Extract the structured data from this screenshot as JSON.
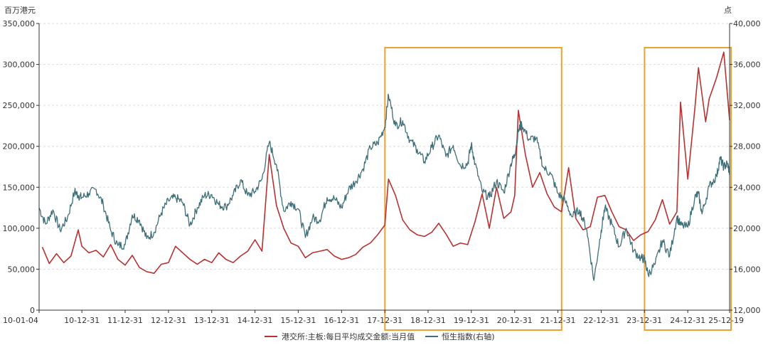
{
  "chart_data": {
    "type": "line",
    "left_unit": "百万港元",
    "right_unit": "点",
    "yleft": {
      "min": 0,
      "max": 350000,
      "ticks": [
        0,
        50000,
        100000,
        150000,
        200000,
        250000,
        300000,
        350000
      ],
      "tick_labels": [
        "0",
        "50,000",
        "100,000",
        "150,000",
        "200,000",
        "250,000",
        "300,000",
        "350,000"
      ]
    },
    "yright": {
      "min": 12000,
      "max": 40000,
      "ticks": [
        12000,
        16000,
        20000,
        24000,
        28000,
        32000,
        36000,
        40000
      ],
      "tick_labels": [
        "12,000",
        "16,000",
        "20,000",
        "24,000",
        "28,000",
        "32,000",
        "36,000",
        "40,000"
      ]
    },
    "x": {
      "min": "2010-01-04",
      "max": "2025-12-19",
      "ticks": [
        "2010-01-04",
        "2010-12-31",
        "2011-12-31",
        "2012-12-31",
        "2013-12-31",
        "2014-12-31",
        "2015-12-31",
        "2016-12-31",
        "2017-12-31",
        "2018-12-31",
        "2019-12-31",
        "2020-12-31",
        "2021-12-31",
        "2022-12-31",
        "2023-12-31",
        "2024-12-31",
        "2025-12-19"
      ],
      "tick_labels": [
        "10-01-04",
        "10-12-31",
        "11-12-31",
        "12-12-31",
        "13-12-31",
        "14-12-31",
        "15-12-31",
        "16-12-31",
        "17-12-31",
        "18-12-31",
        "19-12-31",
        "20-12-31",
        "21-12-31",
        "22-12-31",
        "23-12-31",
        "24-12-31",
        "25-12-19"
      ]
    },
    "grid": true,
    "legend_position": "bottom",
    "series": [
      {
        "name": "港交所:主板:每日平均成交金额:当月值",
        "axis": "left",
        "color": "#b83232",
        "points": [
          [
            "2010-01-31",
            77000
          ],
          [
            "2010-03-31",
            57000
          ],
          [
            "2010-05-31",
            69000
          ],
          [
            "2010-07-31",
            58000
          ],
          [
            "2010-09-30",
            66000
          ],
          [
            "2010-11-30",
            98000
          ],
          [
            "2010-12-31",
            78000
          ],
          [
            "2011-02-28",
            70000
          ],
          [
            "2011-04-30",
            73000
          ],
          [
            "2011-06-30",
            65000
          ],
          [
            "2011-08-31",
            80000
          ],
          [
            "2011-10-31",
            62000
          ],
          [
            "2011-12-31",
            55000
          ],
          [
            "2012-02-29",
            67000
          ],
          [
            "2012-04-30",
            52000
          ],
          [
            "2012-06-30",
            47000
          ],
          [
            "2012-08-31",
            45000
          ],
          [
            "2012-10-31",
            56000
          ],
          [
            "2012-12-31",
            58000
          ],
          [
            "2013-02-28",
            78000
          ],
          [
            "2013-04-30",
            70000
          ],
          [
            "2013-06-30",
            62000
          ],
          [
            "2013-08-31",
            56000
          ],
          [
            "2013-10-31",
            62000
          ],
          [
            "2013-12-31",
            58000
          ],
          [
            "2014-02-28",
            70000
          ],
          [
            "2014-04-30",
            62000
          ],
          [
            "2014-06-30",
            58000
          ],
          [
            "2014-08-31",
            66000
          ],
          [
            "2014-10-31",
            72000
          ],
          [
            "2014-12-31",
            86000
          ],
          [
            "2015-02-28",
            72000
          ],
          [
            "2015-04-30",
            190000
          ],
          [
            "2015-06-30",
            128000
          ],
          [
            "2015-08-31",
            100000
          ],
          [
            "2015-10-31",
            82000
          ],
          [
            "2015-12-31",
            78000
          ],
          [
            "2016-02-29",
            64000
          ],
          [
            "2016-04-30",
            70000
          ],
          [
            "2016-06-30",
            72000
          ],
          [
            "2016-08-31",
            74000
          ],
          [
            "2016-10-31",
            66000
          ],
          [
            "2016-12-31",
            62000
          ],
          [
            "2017-02-28",
            64000
          ],
          [
            "2017-04-30",
            68000
          ],
          [
            "2017-06-30",
            77000
          ],
          [
            "2017-08-31",
            82000
          ],
          [
            "2017-10-31",
            92000
          ],
          [
            "2017-12-31",
            104000
          ],
          [
            "2018-01-31",
            160000
          ],
          [
            "2018-03-31",
            140000
          ],
          [
            "2018-05-31",
            110000
          ],
          [
            "2018-07-31",
            98000
          ],
          [
            "2018-09-30",
            92000
          ],
          [
            "2018-11-30",
            90000
          ],
          [
            "2019-01-31",
            95000
          ],
          [
            "2019-03-31",
            106000
          ],
          [
            "2019-05-31",
            93000
          ],
          [
            "2019-07-31",
            78000
          ],
          [
            "2019-09-30",
            82000
          ],
          [
            "2019-11-30",
            80000
          ],
          [
            "2020-01-31",
            108000
          ],
          [
            "2020-03-31",
            142000
          ],
          [
            "2020-05-31",
            100000
          ],
          [
            "2020-07-31",
            150000
          ],
          [
            "2020-09-30",
            112000
          ],
          [
            "2020-11-30",
            120000
          ],
          [
            "2020-12-31",
            140000
          ],
          [
            "2021-01-31",
            244000
          ],
          [
            "2021-03-31",
            190000
          ],
          [
            "2021-05-31",
            150000
          ],
          [
            "2021-07-31",
            168000
          ],
          [
            "2021-09-30",
            142000
          ],
          [
            "2021-11-30",
            126000
          ],
          [
            "2022-01-31",
            120000
          ],
          [
            "2022-03-31",
            174000
          ],
          [
            "2022-05-31",
            112000
          ],
          [
            "2022-07-31",
            98000
          ],
          [
            "2022-09-30",
            102000
          ],
          [
            "2022-11-30",
            138000
          ],
          [
            "2023-01-31",
            140000
          ],
          [
            "2023-03-31",
            120000
          ],
          [
            "2023-05-31",
            102000
          ],
          [
            "2023-07-31",
            98000
          ],
          [
            "2023-09-30",
            85000
          ],
          [
            "2023-11-30",
            92000
          ],
          [
            "2024-01-31",
            96000
          ],
          [
            "2024-03-31",
            110000
          ],
          [
            "2024-05-31",
            135000
          ],
          [
            "2024-07-31",
            105000
          ],
          [
            "2024-09-30",
            120000
          ],
          [
            "2024-10-31",
            254000
          ],
          [
            "2024-12-31",
            160000
          ],
          [
            "2025-02-28",
            245000
          ],
          [
            "2025-03-31",
            296000
          ],
          [
            "2025-05-31",
            230000
          ],
          [
            "2025-06-30",
            258000
          ],
          [
            "2025-08-31",
            284000
          ],
          [
            "2025-10-31",
            315000
          ],
          [
            "2025-12-19",
            232000
          ]
        ]
      },
      {
        "name": "恒生指数(右轴)",
        "axis": "right",
        "color": "#3f6f78",
        "points": [
          [
            "2010-01-04",
            22000
          ],
          [
            "2010-02-28",
            20400
          ],
          [
            "2010-04-30",
            21800
          ],
          [
            "2010-06-30",
            19800
          ],
          [
            "2010-08-31",
            21000
          ],
          [
            "2010-10-31",
            23600
          ],
          [
            "2010-11-30",
            23200
          ],
          [
            "2010-12-31",
            23000
          ],
          [
            "2011-02-28",
            23400
          ],
          [
            "2011-04-30",
            23800
          ],
          [
            "2011-06-30",
            22300
          ],
          [
            "2011-08-31",
            19800
          ],
          [
            "2011-10-31",
            18300
          ],
          [
            "2011-12-31",
            18400
          ],
          [
            "2012-02-29",
            21300
          ],
          [
            "2012-04-30",
            20800
          ],
          [
            "2012-06-30",
            19000
          ],
          [
            "2012-08-31",
            19600
          ],
          [
            "2012-10-31",
            21500
          ],
          [
            "2012-12-31",
            22700
          ],
          [
            "2013-02-28",
            23000
          ],
          [
            "2013-04-30",
            22500
          ],
          [
            "2013-06-30",
            20300
          ],
          [
            "2013-08-31",
            22000
          ],
          [
            "2013-10-31",
            23200
          ],
          [
            "2013-12-31",
            23300
          ],
          [
            "2014-02-28",
            22300
          ],
          [
            "2014-04-30",
            22100
          ],
          [
            "2014-06-30",
            23200
          ],
          [
            "2014-08-31",
            24700
          ],
          [
            "2014-10-31",
            23200
          ],
          [
            "2014-12-31",
            23600
          ],
          [
            "2015-02-28",
            24800
          ],
          [
            "2015-04-30",
            28400
          ],
          [
            "2015-06-30",
            26200
          ],
          [
            "2015-08-31",
            21700
          ],
          [
            "2015-10-31",
            22600
          ],
          [
            "2015-12-31",
            21900
          ],
          [
            "2016-02-29",
            19100
          ],
          [
            "2016-04-30",
            21000
          ],
          [
            "2016-06-30",
            20800
          ],
          [
            "2016-08-31",
            23000
          ],
          [
            "2016-10-31",
            22900
          ],
          [
            "2016-12-31",
            22000
          ],
          [
            "2017-02-28",
            23800
          ],
          [
            "2017-04-30",
            24600
          ],
          [
            "2017-06-30",
            25800
          ],
          [
            "2017-08-31",
            27900
          ],
          [
            "2017-10-31",
            28300
          ],
          [
            "2017-12-31",
            29900
          ],
          [
            "2018-01-31",
            33000
          ],
          [
            "2018-03-31",
            30000
          ],
          [
            "2018-05-31",
            30500
          ],
          [
            "2018-07-31",
            28600
          ],
          [
            "2018-09-30",
            27700
          ],
          [
            "2018-11-30",
            26500
          ],
          [
            "2019-01-31",
            27900
          ],
          [
            "2019-03-31",
            29100
          ],
          [
            "2019-05-31",
            27000
          ],
          [
            "2019-07-31",
            28100
          ],
          [
            "2019-09-30",
            26100
          ],
          [
            "2019-11-30",
            26300
          ],
          [
            "2019-12-31",
            28200
          ],
          [
            "2020-01-31",
            26300
          ],
          [
            "2020-03-31",
            23600
          ],
          [
            "2020-05-31",
            23000
          ],
          [
            "2020-07-31",
            24600
          ],
          [
            "2020-09-30",
            23500
          ],
          [
            "2020-11-30",
            26300
          ],
          [
            "2020-12-31",
            27200
          ],
          [
            "2021-01-31",
            29500
          ],
          [
            "2021-02-28",
            30200
          ],
          [
            "2021-04-30",
            28700
          ],
          [
            "2021-06-30",
            28800
          ],
          [
            "2021-08-31",
            25900
          ],
          [
            "2021-10-31",
            25300
          ],
          [
            "2021-12-31",
            23400
          ],
          [
            "2022-02-28",
            22700
          ],
          [
            "2022-04-30",
            21100
          ],
          [
            "2022-06-30",
            21800
          ],
          [
            "2022-08-31",
            19900
          ],
          [
            "2022-10-31",
            14900
          ],
          [
            "2022-12-31",
            19800
          ],
          [
            "2023-01-31",
            22000
          ],
          [
            "2023-03-31",
            20400
          ],
          [
            "2023-05-31",
            18200
          ],
          [
            "2023-07-31",
            20000
          ],
          [
            "2023-09-30",
            17800
          ],
          [
            "2023-11-30",
            17100
          ],
          [
            "2023-12-31",
            17000
          ],
          [
            "2024-01-31",
            15500
          ],
          [
            "2024-03-31",
            16500
          ],
          [
            "2024-05-31",
            18800
          ],
          [
            "2024-07-31",
            17300
          ],
          [
            "2024-09-30",
            21100
          ],
          [
            "2024-10-31",
            20300
          ],
          [
            "2024-12-31",
            20100
          ],
          [
            "2025-02-28",
            23000
          ],
          [
            "2025-03-31",
            23400
          ],
          [
            "2025-04-30",
            21400
          ],
          [
            "2025-06-30",
            24100
          ],
          [
            "2025-08-31",
            25100
          ],
          [
            "2025-09-30",
            26800
          ],
          [
            "2025-10-31",
            26000
          ],
          [
            "2025-11-30",
            26300
          ],
          [
            "2025-12-19",
            25500
          ]
        ]
      }
    ],
    "highlight_boxes": [
      {
        "start": "2018-01-01",
        "end": "2022-01-31",
        "color": "#f0a030"
      },
      {
        "start": "2024-01-01",
        "end": "2025-12-31",
        "color": "#f0a030"
      }
    ]
  }
}
